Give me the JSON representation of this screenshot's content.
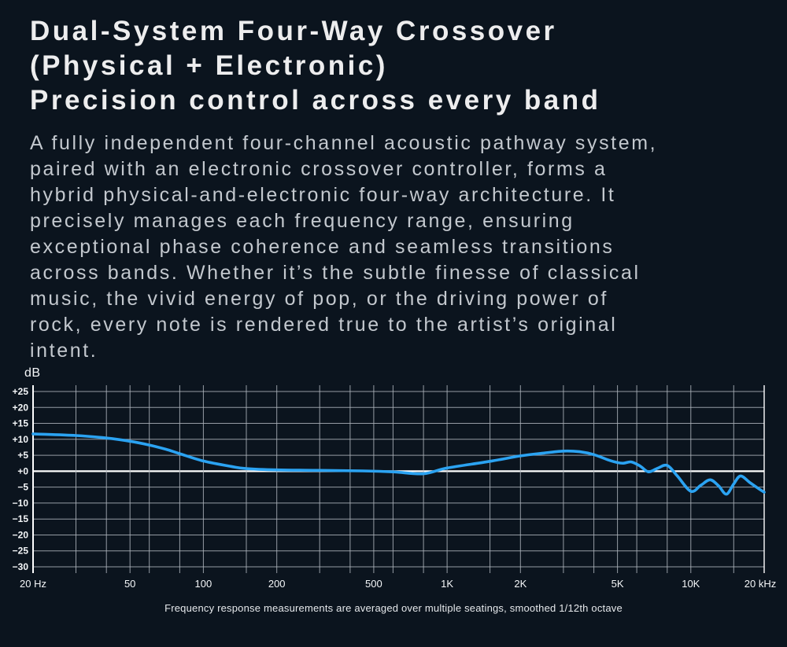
{
  "page": {
    "title_lines": [
      "Dual-System Four-Way Crossover",
      "(Physical + Electronic)",
      "Precision control across every band"
    ],
    "body_lines": [
      "A fully independent four-channel acoustic pathway system,",
      " paired with an electronic crossover controller, forms a",
      "hybrid physical-and-electronic four-way architecture. It",
      "precisely manages each frequency range, ensuring",
      "exceptional phase coherence and seamless transitions",
      "across bands. Whether it’s the subtle finesse of classical",
      "music, the vivid energy of pop, or the driving power of",
      "rock, every note is rendered true to the artist’s original",
      "intent."
    ],
    "caption": "Frequency response measurements are averaged over multiple seatings, smoothed 1/12th octave"
  },
  "colors": {
    "background": "#0B141E",
    "title_text": "#EDEDEE",
    "body_text": "#C3C8CE",
    "grid_minor": "#AEB4BC",
    "grid_axis": "#FFFFFF",
    "curve": "#2BA3F2",
    "axis_label": "#F5F7F9",
    "caption_text": "#E6E9EC"
  },
  "chart_data": {
    "type": "line",
    "title": "",
    "xlabel": "",
    "ylabel": "dB",
    "grid": true,
    "legend": "none",
    "x_axis": {
      "scale": "log",
      "min_hz": 20,
      "max_hz": 20000,
      "tick_values": [
        20,
        50,
        100,
        200,
        500,
        1000,
        2000,
        5000,
        10000,
        20000
      ],
      "tick_labels": [
        "20 Hz",
        "50",
        "100",
        "200",
        "500",
        "1K",
        "2K",
        "5K",
        "10K",
        "20 kHz"
      ],
      "gridline_frequencies": [
        20,
        30,
        40,
        50,
        60,
        80,
        100,
        150,
        200,
        300,
        400,
        500,
        600,
        800,
        1000,
        1500,
        2000,
        3000,
        4000,
        5000,
        6000,
        8000,
        10000,
        15000,
        20000
      ]
    },
    "y_axis": {
      "min_db": -30,
      "max_db": 25,
      "step_db": 5,
      "tick_labels": [
        "+25",
        "+20",
        "+15",
        "+10",
        "+5",
        "+0",
        "−5",
        "−10",
        "−15",
        "−20",
        "−25",
        "−30"
      ]
    },
    "series": [
      {
        "name": "frequency-response",
        "points_hz_db": [
          [
            20,
            11.7
          ],
          [
            30,
            11.2
          ],
          [
            40,
            10.4
          ],
          [
            50,
            9.4
          ],
          [
            60,
            8.2
          ],
          [
            70,
            6.9
          ],
          [
            80,
            5.5
          ],
          [
            100,
            3.2
          ],
          [
            130,
            1.5
          ],
          [
            150,
            0.8
          ],
          [
            200,
            0.4
          ],
          [
            300,
            0.25
          ],
          [
            450,
            0.1
          ],
          [
            600,
            -0.2
          ],
          [
            800,
            -0.8
          ],
          [
            1000,
            1.0
          ],
          [
            1500,
            3.1
          ],
          [
            2000,
            4.8
          ],
          [
            2500,
            5.7
          ],
          [
            3000,
            6.3
          ],
          [
            3500,
            6.1
          ],
          [
            4000,
            5.2
          ],
          [
            4600,
            3.5
          ],
          [
            5000,
            2.7
          ],
          [
            5300,
            2.5
          ],
          [
            5700,
            2.9
          ],
          [
            6200,
            1.6
          ],
          [
            6700,
            -0.2
          ],
          [
            7300,
            0.9
          ],
          [
            8000,
            1.8
          ],
          [
            8800,
            -1.5
          ],
          [
            10000,
            -6.3
          ],
          [
            11000,
            -4.4
          ],
          [
            12000,
            -2.7
          ],
          [
            13000,
            -4.6
          ],
          [
            14000,
            -7.2
          ],
          [
            15000,
            -4.0
          ],
          [
            16000,
            -1.5
          ],
          [
            17500,
            -3.6
          ],
          [
            19000,
            -5.5
          ],
          [
            20000,
            -6.6
          ]
        ]
      }
    ]
  }
}
